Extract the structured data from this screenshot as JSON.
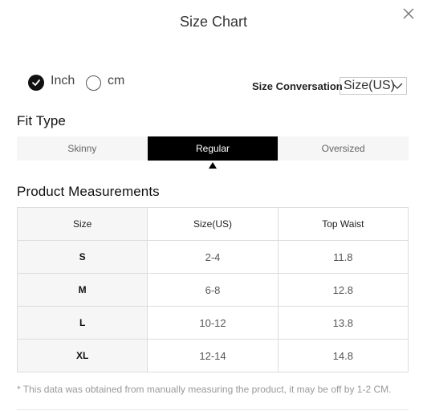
{
  "modal": {
    "title": "Size Chart"
  },
  "units": {
    "options": [
      {
        "label": "Inch",
        "selected": true
      },
      {
        "label": "cm",
        "selected": false
      }
    ]
  },
  "size_conversion": {
    "label": "Size Conversation",
    "selected_value": "Size(US)"
  },
  "fit_type": {
    "title": "Fit Type",
    "tabs": [
      "Skinny",
      "Regular",
      "Oversized"
    ],
    "active": "Regular"
  },
  "measurements": {
    "title": "Product Measurements",
    "columns": [
      "Size",
      "Size(US)",
      "Top Waist"
    ],
    "rows": [
      {
        "size": "S",
        "size_us": "2-4",
        "top_waist": "11.8"
      },
      {
        "size": "M",
        "size_us": "6-8",
        "top_waist": "12.8"
      },
      {
        "size": "L",
        "size_us": "10-12",
        "top_waist": "13.8"
      },
      {
        "size": "XL",
        "size_us": "12-14",
        "top_waist": "14.8"
      }
    ]
  },
  "footnote": "* This data was obtained from manually measuring the product, it may be off by 1-2 CM.",
  "icons": {
    "close": "close-icon",
    "unit_checked": "check-circle-icon",
    "unit_unchecked": "empty-circle-icon",
    "select_arrow": "chevron-down-icon",
    "active_tab_indicator": "caret-up-icon"
  },
  "colors": {
    "active_tab_bg": "#000000",
    "inactive_tab_bg": "#f6f6f6",
    "footnote": "#999999"
  }
}
